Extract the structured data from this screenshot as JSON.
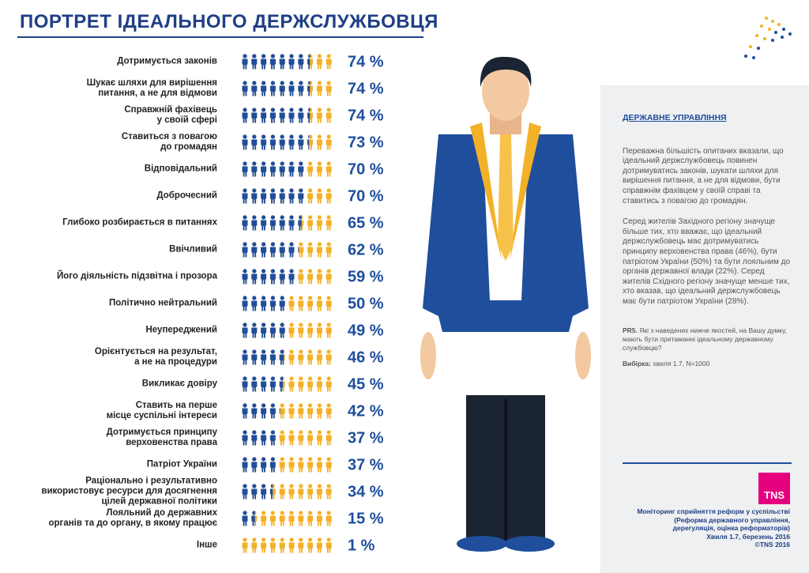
{
  "chart_data": {
    "type": "pictograph",
    "title": "ПОРТРЕТ ІДЕАЛЬНОГО ДЕРЖСЛУЖБОВЦЯ",
    "categories": [
      "Дотримується законів",
      "Шукає шляхи для вирішення\nпитання, а не для відмови",
      "Справжній фахівець\nу своїй сфері",
      "Ставиться з повагою\nдо громадян",
      "Відповідальний",
      "Доброчесний",
      "Глибоко розбирається в питаннях",
      "Ввічливий",
      "Його діяльність підзвітна і прозора",
      "Політично нейтральний",
      "Неупереджений",
      "Орієнтується на результат,\nа не на процедури",
      "Викликає довіру",
      "Ставить на перше\nмісце суспільні інтереси",
      "Дотримується принципу\nверховенства права",
      "Патріот України",
      "Раціонально і результативно\nвикористовує ресурси для досягнення\nцілей державної політики",
      "Лояльний до державних\nорганів та до органу, в якому працює",
      "Інше"
    ],
    "values": [
      74,
      74,
      74,
      73,
      70,
      70,
      65,
      62,
      59,
      50,
      49,
      46,
      45,
      42,
      37,
      37,
      34,
      15,
      1
    ],
    "value_labels": [
      "74 %",
      "74 %",
      "74 %",
      "73 %",
      "70 %",
      "70 %",
      "65 %",
      "62 %",
      "59 %",
      "50 %",
      "49 %",
      "46 %",
      "45 %",
      "42 %",
      "37 %",
      "37 %",
      "34 %",
      "15 %",
      "1 %"
    ],
    "color": "#1f4e9c",
    "rest_color": "#f3b128",
    "xlim": [
      0,
      100
    ]
  },
  "sidebar": {
    "heading": "ДЕРЖАВНЕ УПРАВЛІННЯ",
    "paragraphs": [
      "Переважна більшість опитаних вказали, що ідеальний держслужбовець повинен дотримуватись законів, шукати шляхи для вирішення питання, а не для відмови, бути справжнім фахівцем у своїй справі та ставитись з повагою до громадян.",
      "Серед жителів Західного регіону значуще більше тих, хто вважає, що ідеальний держслужбовець має дотримуватись принципу верховенства права (46%), бути патріотом України (50%) та бути лояльним до органів державної влади (22%). Серед жителів Східного регіону значуще менше тих, хто вказав, що ідеальний держслужбовець має бути патріотом України (28%)."
    ],
    "question_label": "PR5.",
    "question": "Які з наведених нижче якостей, на Вашу думку, мають бути притаманні ідеальному державному службовцю?",
    "sample_label": "Вибірка:",
    "sample": "хвиля 1.7, N=1000"
  },
  "footer": {
    "logo": "TNS",
    "lines": [
      "Моніторинг сприйняття реформ у суспільстві",
      "(Реформа державного управління,",
      "дерегуляція, оцінка реформаторів)",
      "Хвиля 1.7, березень 2016",
      "©TNS 2016"
    ]
  }
}
